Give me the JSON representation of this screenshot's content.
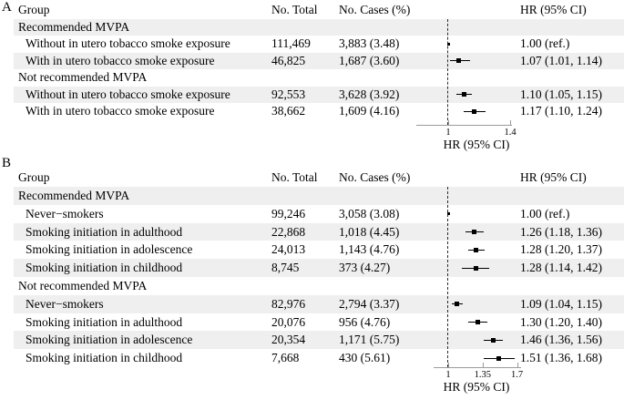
{
  "columns": {
    "group": "Group",
    "total": "No. Total",
    "cases": "No. Cases (%)",
    "hr": "HR (95% CI)"
  },
  "colors": {
    "row_shade": "#efefef",
    "axis_line": "#9a9a9a",
    "ref_line": "#2b2b2b",
    "ink": "#000000"
  },
  "chart_data": [
    {
      "type": "forest",
      "panel_label": "A",
      "axis": {
        "label": "HR (95% CI)",
        "ref_line": 1,
        "ticks": [
          1,
          1.4
        ],
        "tick_labels": [
          "1",
          "1.4"
        ]
      },
      "rows": [
        {
          "group": "Recommended MVPA",
          "section": true
        },
        {
          "group": "Without in utero tobacco smoke exposure",
          "total": "111,469",
          "cases": "3,883 (3.48)",
          "hr_text": "1.00 (ref.)",
          "hr": 1.0,
          "ref": true
        },
        {
          "group": "With in utero tobacco smoke exposure",
          "total": "46,825",
          "cases": "1,687 (3.60)",
          "hr_text": "1.07 (1.01, 1.14)",
          "hr": 1.07,
          "lo": 1.01,
          "hi": 1.14
        },
        {
          "group": "Not recommended MVPA",
          "section": true
        },
        {
          "group": "Without in utero tobacco smoke exposure",
          "total": "92,553",
          "cases": "3,628 (3.92)",
          "hr_text": "1.10 (1.05, 1.15)",
          "hr": 1.1,
          "lo": 1.05,
          "hi": 1.15
        },
        {
          "group": "With in utero tobacco smoke exposure",
          "total": "38,662",
          "cases": "1,609 (4.16)",
          "hr_text": "1.17 (1.10, 1.24)",
          "hr": 1.17,
          "lo": 1.1,
          "hi": 1.24
        }
      ]
    },
    {
      "type": "forest",
      "panel_label": "B",
      "axis": {
        "label": "HR (95% CI)",
        "ref_line": 1,
        "ticks": [
          1,
          1.35,
          1.7
        ],
        "tick_labels": [
          "1",
          "1.35",
          "1.7"
        ]
      },
      "rows": [
        {
          "group": "Recommended MVPA",
          "section": true
        },
        {
          "group": "Never−smokers",
          "total": "99,246",
          "cases": "3,058 (3.08)",
          "hr_text": "1.00 (ref.)",
          "hr": 1.0,
          "ref": true
        },
        {
          "group": "Smoking initiation in adulthood",
          "total": "22,868",
          "cases": "1,018 (4.45)",
          "hr_text": "1.26 (1.18, 1.36)",
          "hr": 1.26,
          "lo": 1.18,
          "hi": 1.36
        },
        {
          "group": "Smoking initiation in adolescence",
          "total": "24,013",
          "cases": "1,143 (4.76)",
          "hr_text": "1.28 (1.20, 1.37)",
          "hr": 1.28,
          "lo": 1.2,
          "hi": 1.37
        },
        {
          "group": "Smoking initiation in childhood",
          "total": "8,745",
          "cases": "373 (4.27)",
          "hr_text": "1.28 (1.14, 1.42)",
          "hr": 1.28,
          "lo": 1.14,
          "hi": 1.42
        },
        {
          "group": "Not recommended MVPA",
          "section": true
        },
        {
          "group": "Never−smokers",
          "total": "82,976",
          "cases": "2,794 (3.37)",
          "hr_text": "1.09 (1.04, 1.15)",
          "hr": 1.09,
          "lo": 1.04,
          "hi": 1.15
        },
        {
          "group": "Smoking initiation in adulthood",
          "total": "20,076",
          "cases": "956 (4.76)",
          "hr_text": "1.30 (1.20, 1.40)",
          "hr": 1.3,
          "lo": 1.2,
          "hi": 1.4
        },
        {
          "group": "Smoking initiation in adolescence",
          "total": "20,354",
          "cases": "1,171 (5.75)",
          "hr_text": "1.46 (1.36, 1.56)",
          "hr": 1.46,
          "lo": 1.36,
          "hi": 1.56
        },
        {
          "group": "Smoking initiation in childhood",
          "total": "7,668",
          "cases": "430 (5.61)",
          "hr_text": "1.51 (1.36, 1.68)",
          "hr": 1.51,
          "lo": 1.36,
          "hi": 1.68
        }
      ]
    }
  ]
}
